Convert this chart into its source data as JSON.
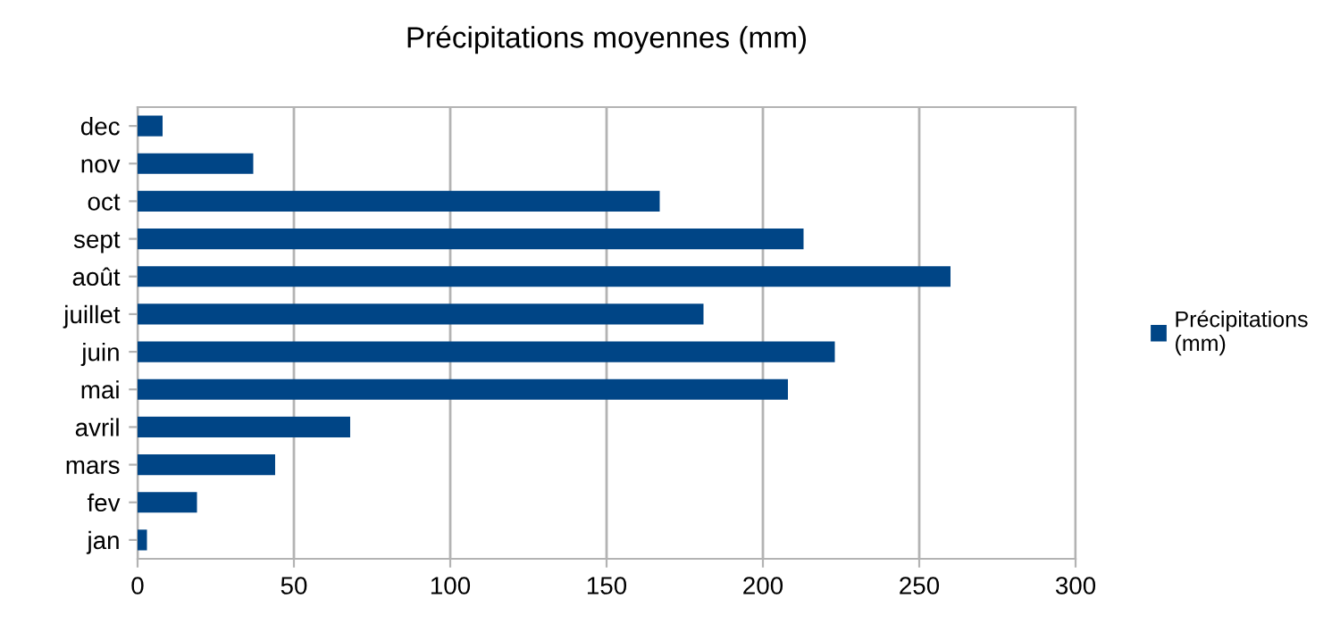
{
  "chart_data": {
    "type": "bar",
    "orientation": "horizontal",
    "title": "Précipitations moyennes (mm)",
    "categories": [
      "dec",
      "nov",
      "oct",
      "sept",
      "août",
      "juillet",
      "juin",
      "mai",
      "avril",
      "mars",
      "fev",
      "jan"
    ],
    "series": [
      {
        "name": "Précipitations\n(mm)",
        "color": "#004586",
        "values": [
          8,
          37,
          167,
          213,
          260,
          181,
          223,
          208,
          68,
          44,
          19,
          3
        ]
      }
    ],
    "xlim": [
      0,
      300
    ],
    "xticks": [
      0,
      50,
      100,
      150,
      200,
      250,
      300
    ],
    "grid": "x",
    "legend": "right"
  }
}
